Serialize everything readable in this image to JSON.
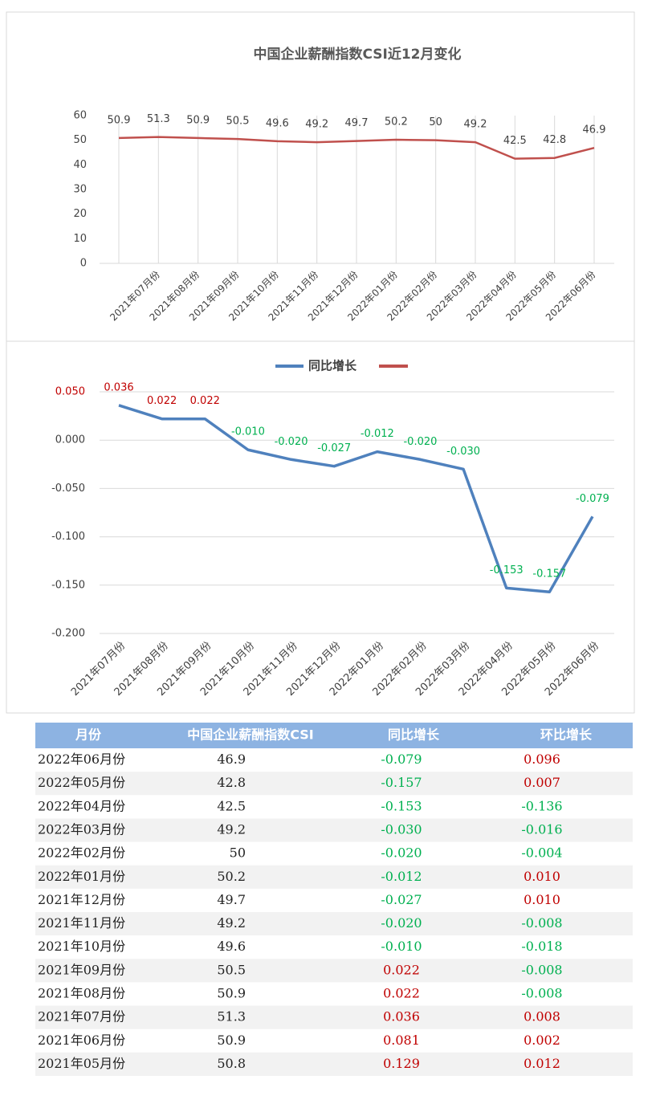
{
  "chart_data": [
    {
      "type": "line",
      "title": "中国企业薪酬指数CSI近12月变化",
      "categories": [
        null,
        "2021年07月份",
        "2021年08月份",
        "2021年09月份",
        "2021年10月份",
        "2021年11月份",
        "2021年12月份",
        "2022年01月份",
        "2022年02月份",
        "2022年03月份",
        "2022年04月份",
        "2022年05月份",
        "2022年06月份"
      ],
      "values": [
        50.9,
        51.3,
        50.9,
        50.5,
        49.6,
        49.2,
        49.7,
        50.2,
        50,
        49.2,
        42.5,
        42.8,
        46.9
      ],
      "color": "#c0504d",
      "ylim": [
        0,
        60
      ],
      "yticks": [
        0,
        10,
        20,
        30,
        40,
        50,
        60
      ],
      "grid": "vertical"
    },
    {
      "type": "line",
      "categories": [
        "2021年07月份",
        "2021年08月份",
        "2021年09月份",
        "2021年10月份",
        "2021年11月份",
        "2021年12月份",
        "2022年01月份",
        "2022年02月份",
        "2022年03月份",
        "2022年04月份",
        "2022年05月份",
        "2022年06月份"
      ],
      "series": [
        {
          "name": "同比增长",
          "color": "#4f81bd",
          "values": [
            0.036,
            0.022,
            0.022,
            -0.01,
            -0.02,
            -0.027,
            -0.012,
            -0.02,
            -0.03,
            -0.153,
            -0.157,
            -0.079
          ],
          "value_labels": [
            "0.036",
            "0.022",
            "0.022",
            "-0.010",
            "-0.020",
            "-0.027",
            "-0.012",
            "-0.020",
            "-0.030",
            "-0.153",
            "-0.157",
            "-0.079"
          ]
        }
      ],
      "label_colors": {
        "positive": "#c00000",
        "negative": "#00b050"
      },
      "ylim": [
        -0.2,
        0.05
      ],
      "yticks": [
        {
          "value": 0.05,
          "label": "0.050"
        },
        {
          "value": 0,
          "label": "0.000"
        },
        {
          "value": -0.05,
          "label": "-0.050"
        },
        {
          "value": -0.1,
          "label": "-0.100"
        },
        {
          "value": -0.15,
          "label": "-0.150"
        },
        {
          "value": -0.2,
          "label": "-0.200"
        }
      ],
      "grid": "horizontal",
      "legend": "top"
    }
  ],
  "table": {
    "header": [
      "月份",
      "中国企业薪酬指数CSI",
      "同比增长",
      "环比增长"
    ],
    "rows": [
      [
        "2022年06月份",
        "46.9",
        "-0.079",
        "0.096"
      ],
      [
        "2022年05月份",
        "42.8",
        "-0.157",
        "0.007"
      ],
      [
        "2022年04月份",
        "42.5",
        "-0.153",
        "-0.136"
      ],
      [
        "2022年03月份",
        "49.2",
        "-0.030",
        "-0.016"
      ],
      [
        "2022年02月份",
        "50",
        "-0.020",
        "-0.004"
      ],
      [
        "2022年01月份",
        "50.2",
        "-0.012",
        "0.010"
      ],
      [
        "2021年12月份",
        "49.7",
        "-0.027",
        "0.010"
      ],
      [
        "2021年11月份",
        "49.2",
        "-0.020",
        "-0.008"
      ],
      [
        "2021年10月份",
        "49.6",
        "-0.010",
        "-0.018"
      ],
      [
        "2021年09月份",
        "50.5",
        "0.022",
        "-0.008"
      ],
      [
        "2021年08月份",
        "50.9",
        "0.022",
        "-0.008"
      ],
      [
        "2021年07月份",
        "51.3",
        "0.036",
        "0.008"
      ],
      [
        "2021年06月份",
        "50.9",
        "0.081",
        "0.002"
      ],
      [
        "2021年05月份",
        "50.8",
        "0.129",
        "0.012"
      ]
    ]
  }
}
